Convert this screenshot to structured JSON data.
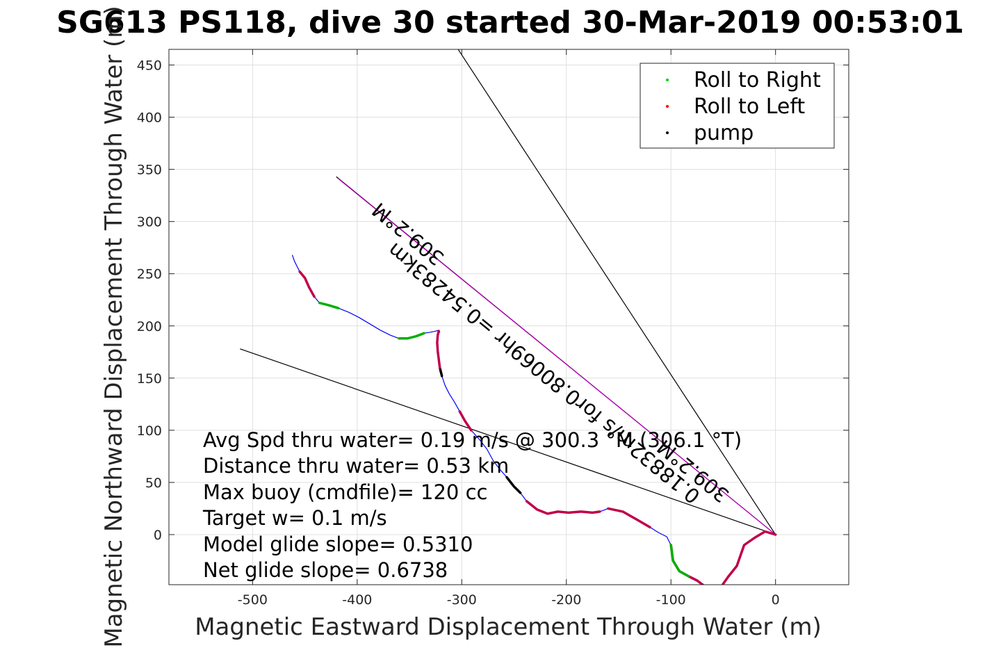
{
  "chart_data": {
    "type": "line",
    "title": "SG613 PS118, dive 30 started 30-Mar-2019 00:53:01",
    "xlabel": "Magnetic Eastward Displacement Through Water (m)",
    "ylabel": "Magnetic Northward Displacement Through Water (m)",
    "xlim": [
      -580,
      70
    ],
    "ylim": [
      -48,
      465
    ],
    "xticks": [
      -500,
      -400,
      -300,
      -200,
      -100,
      0
    ],
    "yticks": [
      0,
      50,
      100,
      150,
      200,
      250,
      300,
      350,
      400,
      450
    ],
    "xtick_labels": [
      "-500",
      "-400",
      "-300",
      "-200",
      "-100",
      "0"
    ],
    "ytick_labels": [
      "0",
      "50",
      "100",
      "150",
      "200",
      "250",
      "300",
      "350",
      "400",
      "450"
    ],
    "grid": true,
    "legend": {
      "placement": "top-right",
      "entries": [
        {
          "label": "Roll to Right",
          "color": "#00d000"
        },
        {
          "label": "Roll to Left",
          "color": "#ff0000"
        },
        {
          "label": "pump",
          "color": "#000000"
        }
      ]
    },
    "track": {
      "name": "track",
      "color": "#0000ff",
      "x": [
        0,
        -10,
        -20,
        -30,
        -37,
        -45,
        -52,
        -60,
        -67,
        -75,
        -83,
        -92,
        -98,
        -100,
        -104,
        -112,
        -120,
        -132,
        -146,
        -160,
        -168,
        -175,
        -186,
        -198,
        -208,
        -218,
        -228,
        -238,
        -244,
        -250,
        -257,
        -264,
        -270,
        -276,
        -283,
        -291,
        -297,
        -302,
        -307,
        -312,
        -316,
        -319,
        -321,
        -322,
        -323,
        -323.5,
        -323,
        -322,
        -321,
        -322,
        -325,
        -330,
        -336,
        -344,
        -352,
        -360,
        -368,
        -378,
        -388,
        -398,
        -408,
        -418,
        -428,
        -436,
        -441,
        -446,
        -450,
        -455,
        -460,
        -462
      ],
      "y": [
        0,
        3,
        -3,
        -10,
        -30,
        -40,
        -50,
        -52,
        -50,
        -44,
        -40,
        -35,
        -25,
        -10,
        -2,
        2,
        7,
        14,
        22,
        25,
        22,
        21,
        22,
        21,
        22,
        20,
        24,
        32,
        40,
        46,
        55,
        63,
        71,
        82,
        91,
        100,
        109,
        118,
        127,
        135,
        143,
        152,
        160,
        168,
        176,
        184,
        191,
        195,
        194,
        196,
        195,
        194,
        193,
        190,
        188,
        188,
        191,
        196,
        202,
        208,
        213,
        217,
        220,
        222,
        228,
        237,
        246,
        252,
        262,
        268
      ]
    },
    "segments": [
      {
        "type": "roll-left",
        "color": "#c0004a",
        "range": [
          0,
          13
        ]
      },
      {
        "type": "roll-left",
        "color": "#c0004a",
        "range": [
          16,
          19
        ]
      },
      {
        "type": "roll-left",
        "color": "#c0004a",
        "range": [
          20,
          27
        ]
      },
      {
        "type": "pump",
        "color": "#000000",
        "range": [
          28,
          30
        ]
      },
      {
        "type": "roll-left",
        "color": "#c0004a",
        "range": [
          35,
          37
        ]
      },
      {
        "type": "pump",
        "color": "#000000",
        "range": [
          41,
          42
        ]
      },
      {
        "type": "roll-left",
        "color": "#c0004a",
        "range": [
          42,
          47
        ]
      },
      {
        "type": "roll-right",
        "color": "#00b000",
        "range": [
          10,
          13
        ]
      },
      {
        "type": "roll-right",
        "color": "#00b000",
        "range": [
          52,
          55
        ]
      },
      {
        "type": "roll-right",
        "color": "#00b000",
        "range": [
          61,
          63
        ]
      },
      {
        "type": "roll-left",
        "color": "#c0004a",
        "range": [
          64,
          67
        ]
      }
    ],
    "reference_lines": [
      {
        "name": "course-line",
        "color": "#000000",
        "x": [
          0,
          -310
        ],
        "y": [
          0,
          475
        ]
      },
      {
        "name": "current-line",
        "color": "#000000",
        "x": [
          0,
          -512
        ],
        "y": [
          0,
          178
        ]
      },
      {
        "name": "average-line",
        "color": "#000000",
        "x": [
          0,
          -420
        ],
        "y": [
          0,
          343
        ]
      },
      {
        "name": "average-line-overlay",
        "color": "#c000c0",
        "x": [
          0,
          -418
        ],
        "y": [
          0,
          341
        ]
      }
    ],
    "line_labels": [
      {
        "name": "heading-label",
        "text": "309.2°M"
      },
      {
        "name": "speed-label",
        "text": "0.18832m/s for0.80069hr =0.54283km"
      },
      {
        "name": "heading-label-2",
        "text": "309.2°M"
      }
    ],
    "annotations": [
      "Avg Spd thru water=  0.19 m/s @ 300.3 °M (306.1 °T)",
      "Distance thru water=  0.53 km",
      "Max buoy (cmdfile)= 120 cc",
      "Target w= 0.1 m/s",
      "Model glide slope= 0.5310",
      "Net glide slope= 0.6738"
    ]
  }
}
